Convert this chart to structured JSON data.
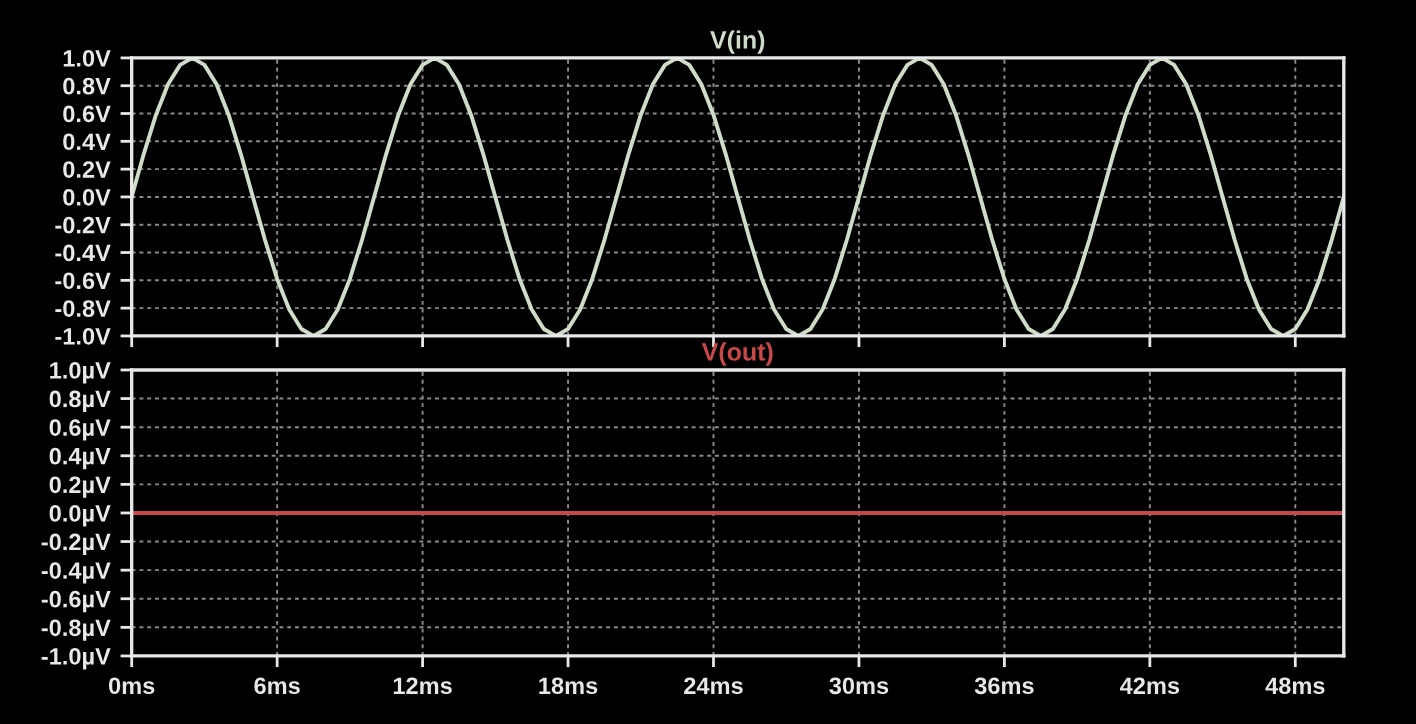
{
  "chart_data": [
    {
      "type": "line",
      "xlim": [
        0,
        50
      ],
      "xticks": [
        {
          "value": 0,
          "label": null
        },
        {
          "value": 6,
          "label": null
        },
        {
          "value": 12,
          "label": null
        },
        {
          "value": 18,
          "label": null
        },
        {
          "value": 24,
          "label": null
        },
        {
          "value": 30,
          "label": null
        },
        {
          "value": 36,
          "label": null
        },
        {
          "value": 42,
          "label": null
        },
        {
          "value": 48,
          "label": null
        }
      ],
      "ylim": [
        -1.0,
        1.0
      ],
      "yticks": [
        {
          "value": 1.0,
          "label": "1.0V"
        },
        {
          "value": 0.8,
          "label": "0.8V"
        },
        {
          "value": 0.6,
          "label": "0.6V"
        },
        {
          "value": 0.4,
          "label": "0.4V"
        },
        {
          "value": 0.2,
          "label": "0.2V"
        },
        {
          "value": 0.0,
          "label": "0.0V"
        },
        {
          "value": -0.2,
          "label": "-0.2V"
        },
        {
          "value": -0.4,
          "label": "-0.4V"
        },
        {
          "value": -0.6,
          "label": "-0.6V"
        },
        {
          "value": -0.8,
          "label": "-0.8V"
        },
        {
          "value": -1.0,
          "label": "-1.0V"
        }
      ],
      "grid": true,
      "tick_labels": "y",
      "line_style": "solid",
      "series": [
        {
          "name": "V(in)",
          "color": "#cfdcc8",
          "x": [
            0,
            0.5,
            1,
            1.5,
            2,
            2.5,
            3,
            3.5,
            4,
            4.5,
            5,
            5.5,
            6,
            6.5,
            7,
            7.5,
            8,
            8.5,
            9,
            9.5,
            10,
            10.5,
            11,
            11.5,
            12,
            12.5,
            13,
            13.5,
            14,
            14.5,
            15,
            15.5,
            16,
            16.5,
            17,
            17.5,
            18,
            18.5,
            19,
            19.5,
            20,
            20.5,
            21,
            21.5,
            22,
            22.5,
            23,
            23.5,
            24,
            24.5,
            25,
            25.5,
            26,
            26.5,
            27,
            27.5,
            28,
            28.5,
            29,
            29.5,
            30,
            30.5,
            31,
            31.5,
            32,
            32.5,
            33,
            33.5,
            34,
            34.5,
            35,
            35.5,
            36,
            36.5,
            37,
            37.5,
            38,
            38.5,
            39,
            39.5,
            40,
            40.5,
            41,
            41.5,
            42,
            42.5,
            43,
            43.5,
            44,
            44.5,
            45,
            45.5,
            46,
            46.5,
            47,
            47.5,
            48,
            48.5,
            49,
            49.5,
            50
          ],
          "values": [
            0,
            0.31,
            0.59,
            0.81,
            0.95,
            1,
            0.95,
            0.81,
            0.59,
            0.31,
            0,
            -0.31,
            -0.59,
            -0.81,
            -0.95,
            -1,
            -0.95,
            -0.81,
            -0.59,
            -0.31,
            0,
            0.31,
            0.59,
            0.81,
            0.95,
            1,
            0.95,
            0.81,
            0.59,
            0.31,
            0,
            -0.31,
            -0.59,
            -0.81,
            -0.95,
            -1,
            -0.95,
            -0.81,
            -0.59,
            -0.31,
            0,
            0.31,
            0.59,
            0.81,
            0.95,
            1,
            0.95,
            0.81,
            0.59,
            0.31,
            0,
            -0.31,
            -0.59,
            -0.81,
            -0.95,
            -1,
            -0.95,
            -0.81,
            -0.59,
            -0.31,
            0,
            0.31,
            0.59,
            0.81,
            0.95,
            1,
            0.95,
            0.81,
            0.59,
            0.31,
            0,
            -0.31,
            -0.59,
            -0.81,
            -0.95,
            -1,
            -0.95,
            -0.81,
            -0.59,
            -0.31,
            0,
            0.31,
            0.59,
            0.81,
            0.95,
            1,
            0.95,
            0.81,
            0.59,
            0.31,
            0,
            -0.31,
            -0.59,
            -0.81,
            -0.95,
            -1,
            -0.95,
            -0.81,
            -0.59,
            -0.31,
            0
          ]
        }
      ]
    },
    {
      "type": "line",
      "xlim": [
        0,
        50
      ],
      "xticks": [
        {
          "value": 0,
          "label": "0ms"
        },
        {
          "value": 6,
          "label": "6ms"
        },
        {
          "value": 12,
          "label": "12ms"
        },
        {
          "value": 18,
          "label": "18ms"
        },
        {
          "value": 24,
          "label": "24ms"
        },
        {
          "value": 30,
          "label": "30ms"
        },
        {
          "value": 36,
          "label": "36ms"
        },
        {
          "value": 42,
          "label": "42ms"
        },
        {
          "value": 48,
          "label": "48ms"
        }
      ],
      "ylim": [
        -1.0,
        1.0
      ],
      "yticks": [
        {
          "value": 1.0,
          "label": "1.0µV"
        },
        {
          "value": 0.8,
          "label": "0.8µV"
        },
        {
          "value": 0.6,
          "label": "0.6µV"
        },
        {
          "value": 0.4,
          "label": "0.4µV"
        },
        {
          "value": 0.2,
          "label": "0.2µV"
        },
        {
          "value": 0.0,
          "label": "0.0µV"
        },
        {
          "value": -0.2,
          "label": "-0.2µV"
        },
        {
          "value": -0.4,
          "label": "-0.4µV"
        },
        {
          "value": -0.6,
          "label": "-0.6µV"
        },
        {
          "value": -0.8,
          "label": "-0.8µV"
        },
        {
          "value": -1.0,
          "label": "-1.0µV"
        }
      ],
      "grid": true,
      "line_style": "solid",
      "series": [
        {
          "name": "V(out)",
          "color": "#c84848",
          "x": [
            0,
            50
          ],
          "values": [
            0,
            0
          ]
        }
      ]
    }
  ]
}
